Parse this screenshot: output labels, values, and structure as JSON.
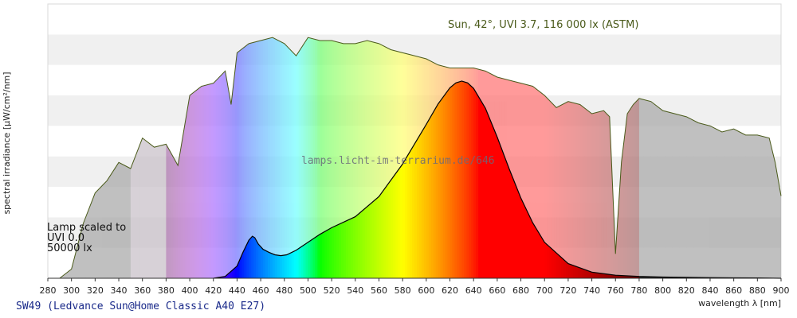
{
  "chart_data": {
    "type": "area",
    "xlabel": "wavelength λ [nm]",
    "ylabel": "spectral irradiance [µW/cm²/nm]",
    "xlim": [
      280,
      900
    ],
    "ylim": [
      0,
      9
    ],
    "x_ticks": [
      280,
      300,
      320,
      340,
      360,
      380,
      400,
      420,
      440,
      460,
      480,
      500,
      520,
      540,
      560,
      580,
      600,
      620,
      640,
      660,
      680,
      700,
      720,
      740,
      760,
      780,
      800,
      820,
      840,
      860,
      880,
      900
    ],
    "grid": "horizontal bands",
    "annotations": {
      "sun": "Sun, 42°, UVI 3.7, 116 000 lx (ASTM)",
      "lamp_lines": [
        "Lamp scaled to",
        "UVI 0.0",
        "50000 lx"
      ],
      "watermark": "lamps.licht-im-terrarium.de/646",
      "lamp_code": "SW49 (Ledvance Sun@Home Classic A40 E27)"
    },
    "series": [
      {
        "name": "Sun, 42°, UVI 3.7, 116 000 lx (ASTM)",
        "x": [
          290,
          300,
          310,
          320,
          330,
          340,
          350,
          360,
          370,
          380,
          390,
          400,
          410,
          420,
          430,
          435,
          440,
          450,
          460,
          470,
          480,
          490,
          500,
          510,
          520,
          530,
          540,
          550,
          560,
          570,
          580,
          590,
          600,
          610,
          620,
          630,
          640,
          650,
          660,
          670,
          680,
          690,
          700,
          710,
          720,
          730,
          740,
          750,
          755,
          760,
          765,
          770,
          775,
          780,
          790,
          800,
          810,
          820,
          830,
          840,
          850,
          860,
          870,
          880,
          890,
          895,
          900
        ],
        "y": [
          0,
          0.3,
          1.8,
          2.8,
          3.2,
          3.8,
          3.6,
          4.6,
          4.3,
          4.4,
          3.7,
          6.0,
          6.3,
          6.4,
          6.8,
          5.7,
          7.4,
          7.7,
          7.8,
          7.9,
          7.7,
          7.3,
          7.9,
          7.8,
          7.8,
          7.7,
          7.7,
          7.8,
          7.7,
          7.5,
          7.4,
          7.3,
          7.2,
          7.0,
          6.9,
          6.9,
          6.9,
          6.8,
          6.6,
          6.5,
          6.4,
          6.3,
          6.0,
          5.6,
          5.8,
          5.7,
          5.4,
          5.5,
          5.3,
          0.8,
          3.8,
          5.4,
          5.7,
          5.9,
          5.8,
          5.5,
          5.4,
          5.3,
          5.1,
          5.0,
          4.8,
          4.9,
          4.7,
          4.7,
          4.6,
          3.8,
          2.7
        ]
      },
      {
        "name": "SW49 (Ledvance Sun@Home Classic A40 E27)",
        "x": [
          420,
          430,
          440,
          445,
          450,
          453,
          455,
          458,
          462,
          467,
          472,
          477,
          482,
          490,
          500,
          510,
          520,
          540,
          560,
          580,
          600,
          610,
          620,
          625,
          630,
          635,
          640,
          650,
          660,
          670,
          680,
          690,
          700,
          720,
          740,
          760,
          780,
          800,
          820,
          840,
          860,
          880,
          900
        ],
        "y": [
          0,
          0.06,
          0.4,
          0.85,
          1.25,
          1.38,
          1.33,
          1.12,
          0.95,
          0.85,
          0.77,
          0.74,
          0.77,
          0.92,
          1.18,
          1.44,
          1.66,
          2.02,
          2.68,
          3.75,
          5.05,
          5.72,
          6.25,
          6.41,
          6.47,
          6.41,
          6.23,
          5.58,
          4.63,
          3.6,
          2.63,
          1.82,
          1.18,
          0.48,
          0.2,
          0.1,
          0.06,
          0.04,
          0.03,
          0.02,
          0.015,
          0.01,
          0.0
        ]
      }
    ]
  }
}
